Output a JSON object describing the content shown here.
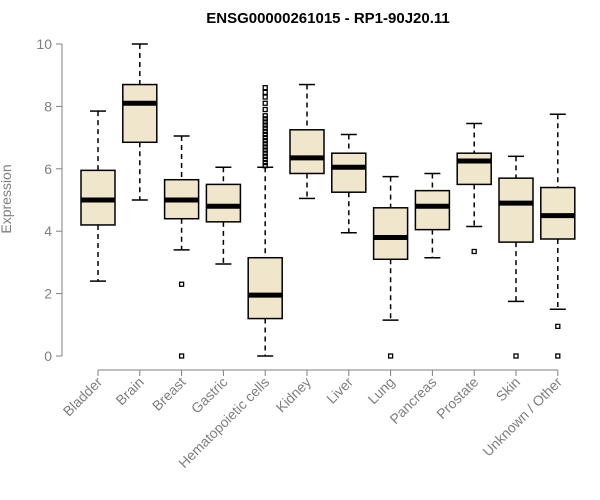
{
  "chart_data": {
    "type": "box",
    "title": "ENSG00000261015 - RP1-90J20.11",
    "xlabel": "",
    "ylabel": "Expression",
    "ylim": [
      0,
      10
    ],
    "yticks": [
      0,
      2,
      4,
      6,
      8,
      10
    ],
    "colors": {
      "box_fill": "#efe6cc",
      "stroke": "#000000",
      "axis": "#7f7f7f"
    },
    "categories": [
      "Bladder",
      "Brain",
      "Breast",
      "Gastric",
      "Hematopoietic cells",
      "Kidney",
      "Liver",
      "Lung",
      "Pancreas",
      "Prostate",
      "Skin",
      "Unknown / Other"
    ],
    "series": [
      {
        "q1": 4.2,
        "median": 5.0,
        "q3": 5.95,
        "whisker_low": 2.4,
        "whisker_high": 7.85,
        "outliers": []
      },
      {
        "q1": 6.85,
        "median": 8.1,
        "q3": 8.7,
        "whisker_low": 5.0,
        "whisker_high": 10.0,
        "outliers": []
      },
      {
        "q1": 4.4,
        "median": 5.0,
        "q3": 5.65,
        "whisker_low": 3.4,
        "whisker_high": 7.05,
        "outliers": [
          2.3,
          0.0
        ]
      },
      {
        "q1": 4.3,
        "median": 4.8,
        "q3": 5.5,
        "whisker_low": 2.95,
        "whisker_high": 6.05,
        "outliers": []
      },
      {
        "q1": 1.2,
        "median": 1.95,
        "q3": 3.15,
        "whisker_low": 0.0,
        "whisker_high": 6.05,
        "outliers": [
          6.1,
          6.2,
          6.3,
          6.4,
          6.5,
          6.6,
          6.7,
          6.8,
          6.9,
          7.0,
          7.1,
          7.2,
          7.3,
          7.4,
          7.5,
          7.6,
          7.7,
          7.9,
          8.1,
          8.3,
          8.45,
          8.6
        ]
      },
      {
        "q1": 5.85,
        "median": 6.35,
        "q3": 7.25,
        "whisker_low": 5.05,
        "whisker_high": 8.7,
        "outliers": []
      },
      {
        "q1": 5.25,
        "median": 6.05,
        "q3": 6.5,
        "whisker_low": 3.95,
        "whisker_high": 7.1,
        "outliers": []
      },
      {
        "q1": 3.1,
        "median": 3.8,
        "q3": 4.75,
        "whisker_low": 1.15,
        "whisker_high": 5.75,
        "outliers": [
          0.0
        ]
      },
      {
        "q1": 4.05,
        "median": 4.8,
        "q3": 5.3,
        "whisker_low": 3.15,
        "whisker_high": 5.85,
        "outliers": []
      },
      {
        "q1": 5.5,
        "median": 6.25,
        "q3": 6.5,
        "whisker_low": 4.15,
        "whisker_high": 7.45,
        "outliers": [
          3.35
        ]
      },
      {
        "q1": 3.65,
        "median": 4.9,
        "q3": 5.7,
        "whisker_low": 1.75,
        "whisker_high": 6.4,
        "outliers": [
          0.0
        ]
      },
      {
        "q1": 3.75,
        "median": 4.5,
        "q3": 5.4,
        "whisker_low": 1.5,
        "whisker_high": 7.75,
        "outliers": [
          0.95,
          0.0
        ]
      }
    ]
  }
}
